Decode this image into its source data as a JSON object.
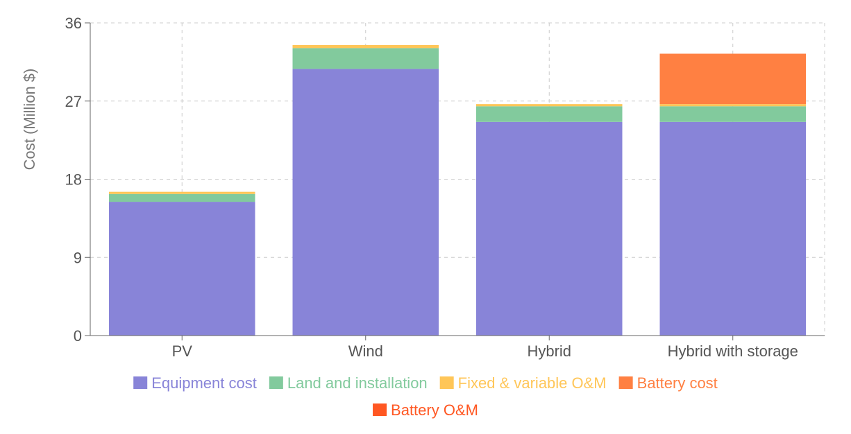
{
  "chart_data": {
    "type": "bar",
    "stacked": true,
    "ylabel": "Cost (Million $)",
    "xlabel": "",
    "ylim": [
      0,
      36
    ],
    "yticks": [
      0,
      9,
      18,
      27,
      36
    ],
    "grid": true,
    "legend_position": "bottom",
    "categories": [
      "PV",
      "Wind",
      "Hybrid",
      "Hybrid with storage"
    ],
    "series": [
      {
        "name": "Equipment cost",
        "color": "#8884d8",
        "values": [
          15.4,
          30.7,
          24.6,
          24.6
        ]
      },
      {
        "name": "Land and installation",
        "color": "#82ca9d",
        "values": [
          0.9,
          2.4,
          1.8,
          1.8
        ]
      },
      {
        "name": "Fixed & variable O&M",
        "color": "#ffc658",
        "values": [
          0.25,
          0.35,
          0.25,
          0.25
        ]
      },
      {
        "name": "Battery cost",
        "color": "#ff8042",
        "values": [
          0,
          0,
          0,
          5.8
        ]
      },
      {
        "name": "Battery O&M",
        "color": "#ff5722",
        "values": [
          0,
          0,
          0,
          0
        ]
      }
    ]
  }
}
